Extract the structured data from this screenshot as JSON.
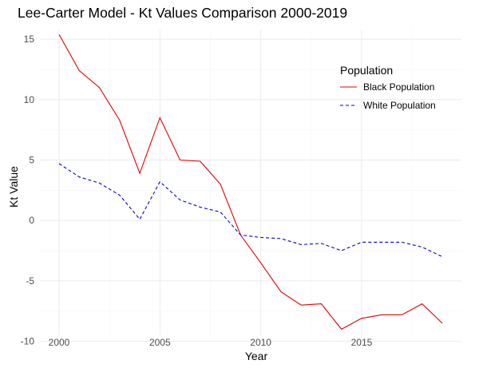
{
  "chart_data": {
    "type": "line",
    "title": "Lee-Carter Model - Kt Values Comparison 2000-2019",
    "xlabel": "Year",
    "ylabel": "Kt Value",
    "xlim": [
      2000,
      2019
    ],
    "ylim": [
      -9.5,
      15.8
    ],
    "x_ticks": [
      2000,
      2005,
      2010,
      2015
    ],
    "y_ticks": [
      -10,
      -5,
      0,
      5,
      10,
      15
    ],
    "grid": true,
    "legend": {
      "title": "Population",
      "placement": "top-right"
    },
    "x": [
      2000,
      2001,
      2002,
      2003,
      2004,
      2005,
      2006,
      2007,
      2008,
      2009,
      2010,
      2011,
      2012,
      2013,
      2014,
      2015,
      2016,
      2017,
      2018,
      2019
    ],
    "series": [
      {
        "name": "Black Population",
        "color": "#e00000",
        "dash": "solid",
        "values": [
          15.4,
          12.4,
          11.0,
          8.3,
          3.9,
          8.5,
          5.0,
          4.9,
          3.0,
          -1.2,
          -3.5,
          -5.9,
          -7.0,
          -6.9,
          -9.0,
          -8.1,
          -7.8,
          -7.8,
          -6.9,
          -8.5
        ]
      },
      {
        "name": "White Population",
        "color": "#0000cc",
        "dash": "dashed",
        "values": [
          4.7,
          3.6,
          3.1,
          2.1,
          0.1,
          3.2,
          1.7,
          1.1,
          0.7,
          -1.2,
          -1.4,
          -1.5,
          -2.0,
          -1.9,
          -2.5,
          -1.8,
          -1.8,
          -1.8,
          -2.2,
          -3.0
        ]
      }
    ]
  }
}
